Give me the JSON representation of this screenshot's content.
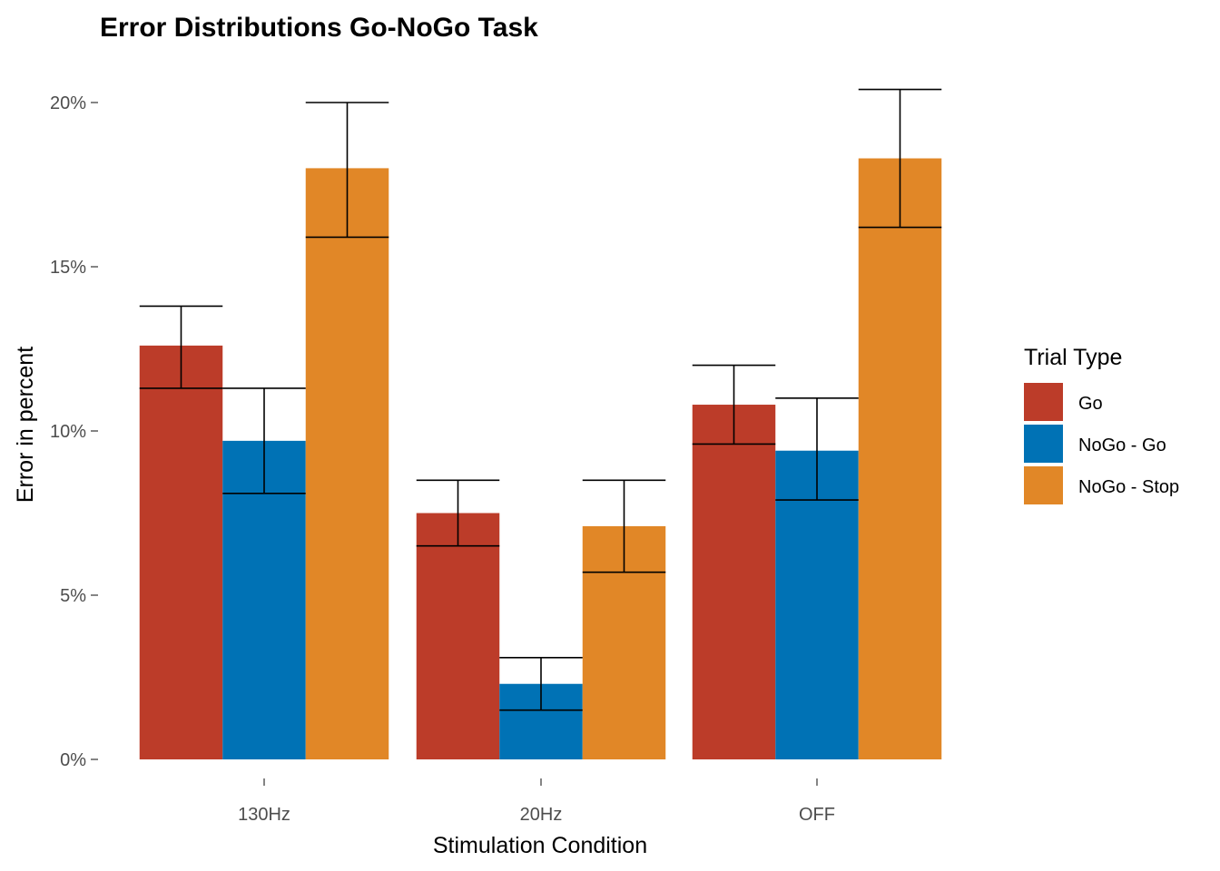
{
  "chart_data": {
    "type": "bar",
    "title": "Error Distributions Go-NoGo Task",
    "xlabel": "Stimulation Condition",
    "ylabel": "Error in percent",
    "categories": [
      "130Hz",
      "20Hz",
      "OFF"
    ],
    "ylim": [
      0,
      20.4
    ],
    "yticks": [
      0,
      5,
      10,
      15,
      20
    ],
    "ytick_labels": [
      "0%",
      "5%",
      "10%",
      "15%",
      "20%"
    ],
    "grid": false,
    "legend": {
      "title": "Trial Type",
      "position": "right"
    },
    "series": [
      {
        "name": "Go",
        "color": "#BC3C29",
        "values": [
          12.6,
          7.5,
          10.8
        ],
        "err_low": [
          11.3,
          6.5,
          9.6
        ],
        "err_high": [
          13.8,
          8.5,
          12.0
        ]
      },
      {
        "name": "NoGo - Go",
        "color": "#0072B5",
        "values": [
          9.7,
          2.3,
          9.4
        ],
        "err_low": [
          8.1,
          1.5,
          7.9
        ],
        "err_high": [
          11.3,
          3.1,
          11.0
        ]
      },
      {
        "name": "NoGo - Stop",
        "color": "#E18727",
        "values": [
          18.0,
          7.1,
          18.3
        ],
        "err_low": [
          15.9,
          5.7,
          16.2
        ],
        "err_high": [
          20.0,
          8.5,
          20.4
        ]
      }
    ]
  }
}
